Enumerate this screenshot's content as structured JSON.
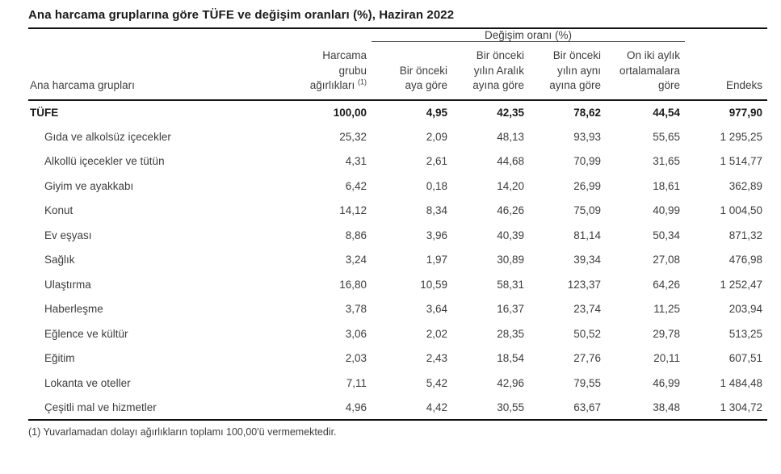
{
  "title": "Ana harcama gruplarına göre TÜFE ve değişim oranları (%), Haziran 2022",
  "table": {
    "span_header": "Değişim oranı (%)",
    "headers": {
      "groups": "Ana harcama grupları",
      "weights": "Harcama\ngrubu\nağırlıkları",
      "weights_sup": "(1)",
      "prev_month": "Bir önceki\naya göre",
      "prev_december": "Bir önceki\nyılın Aralık\nayına göre",
      "prev_year_same_month": "Bir önceki\nyılın aynı\nayına göre",
      "twelve_month_avg": "On iki aylık\nortalamalara\ngöre",
      "index": "Endeks"
    },
    "rows": [
      {
        "label": "TÜFE",
        "bold": true,
        "indent": false,
        "values": [
          "100,00",
          "4,95",
          "42,35",
          "78,62",
          "44,54",
          "977,90"
        ]
      },
      {
        "label": "Gıda ve alkolsüz içecekler",
        "bold": false,
        "indent": true,
        "values": [
          "25,32",
          "2,09",
          "48,13",
          "93,93",
          "55,65",
          "1 295,25"
        ]
      },
      {
        "label": "Alkollü içecekler ve tütün",
        "bold": false,
        "indent": true,
        "values": [
          "4,31",
          "2,61",
          "44,68",
          "70,99",
          "31,65",
          "1 514,77"
        ]
      },
      {
        "label": "Giyim ve ayakkabı",
        "bold": false,
        "indent": true,
        "values": [
          "6,42",
          "0,18",
          "14,20",
          "26,99",
          "18,61",
          "362,89"
        ]
      },
      {
        "label": "Konut",
        "bold": false,
        "indent": true,
        "values": [
          "14,12",
          "8,34",
          "46,26",
          "75,09",
          "40,99",
          "1 004,50"
        ]
      },
      {
        "label": "Ev eşyası",
        "bold": false,
        "indent": true,
        "values": [
          "8,86",
          "3,96",
          "40,39",
          "81,14",
          "50,34",
          "871,32"
        ]
      },
      {
        "label": "Sağlık",
        "bold": false,
        "indent": true,
        "values": [
          "3,24",
          "1,97",
          "30,89",
          "39,34",
          "27,08",
          "476,98"
        ]
      },
      {
        "label": "Ulaştırma",
        "bold": false,
        "indent": true,
        "values": [
          "16,80",
          "10,59",
          "58,31",
          "123,37",
          "64,26",
          "1 252,47"
        ]
      },
      {
        "label": "Haberleşme",
        "bold": false,
        "indent": true,
        "values": [
          "3,78",
          "3,64",
          "16,37",
          "23,74",
          "11,25",
          "203,94"
        ]
      },
      {
        "label": "Eğlence ve kültür",
        "bold": false,
        "indent": true,
        "values": [
          "3,06",
          "2,02",
          "28,35",
          "50,52",
          "29,78",
          "513,25"
        ]
      },
      {
        "label": "Eğitim",
        "bold": false,
        "indent": true,
        "values": [
          "2,03",
          "2,43",
          "18,54",
          "27,76",
          "20,11",
          "607,51"
        ]
      },
      {
        "label": "Lokanta ve oteller",
        "bold": false,
        "indent": true,
        "values": [
          "7,11",
          "5,42",
          "42,96",
          "79,55",
          "46,99",
          "1 484,48"
        ]
      },
      {
        "label": "Çeşitli mal ve hizmetler",
        "bold": false,
        "indent": true,
        "values": [
          "4,96",
          "4,42",
          "30,55",
          "63,67",
          "38,48",
          "1 304,72"
        ]
      }
    ]
  },
  "footnote": "(1) Yuvarlamadan dolayı ağırlıkların toplamı 100,00'ü vermemektedir."
}
